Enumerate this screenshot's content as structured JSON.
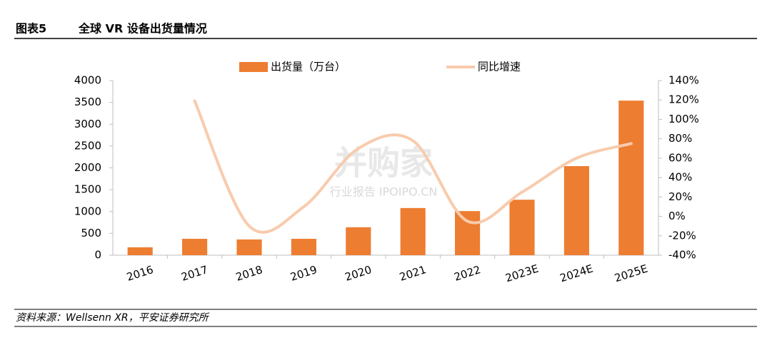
{
  "header": {
    "label": "图表5",
    "title": "全球 VR 设备出货量情况"
  },
  "source": "资料来源：Wellsenn XR，平安证券研究所",
  "watermark": {
    "logo": "并购家",
    "text": "行业报告 IPOIPO.CN"
  },
  "chart_data": {
    "type": "bar",
    "categories": [
      "2016",
      "2017",
      "2018",
      "2019",
      "2020",
      "2021",
      "2022",
      "2023E",
      "2024E",
      "2025E"
    ],
    "series": [
      {
        "name": "出货量（万台）",
        "type": "bar",
        "color": "#ed7d31",
        "values": [
          180,
          375,
          360,
          375,
          640,
          1080,
          1010,
          1270,
          2040,
          3540
        ]
      },
      {
        "name": "同比增速",
        "type": "line",
        "axis": "y2",
        "color": "#f8cbad",
        "values": [
          null,
          119,
          -10,
          10,
          70,
          78,
          -5,
          25,
          60,
          75
        ]
      }
    ],
    "ylim": [
      0,
      4000
    ],
    "yticks": [
      0,
      500,
      1000,
      1500,
      2000,
      2500,
      3000,
      3500,
      4000
    ],
    "y2lim": [
      -40,
      140
    ],
    "y2ticks": [
      {
        "value": -40,
        "label": "-40%"
      },
      {
        "value": -20,
        "label": "-20%"
      },
      {
        "value": 0,
        "label": "0%"
      },
      {
        "value": 20,
        "label": "20%"
      },
      {
        "value": 40,
        "label": "40%"
      },
      {
        "value": 60,
        "label": "60%"
      },
      {
        "value": 80,
        "label": "80%"
      },
      {
        "value": 100,
        "label": "100%"
      },
      {
        "value": 120,
        "label": "120%"
      },
      {
        "value": 140,
        "label": "140%"
      }
    ],
    "legend": "top",
    "grid": false
  }
}
